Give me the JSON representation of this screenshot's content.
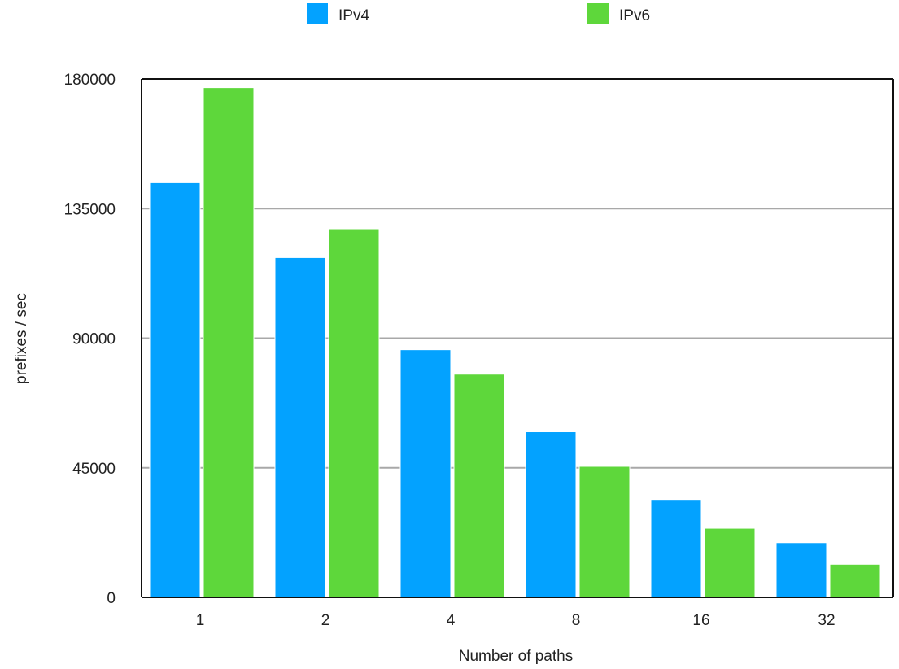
{
  "chart_data": {
    "type": "bar",
    "title": "",
    "xlabel": "Number of paths",
    "ylabel": "prefixes / sec",
    "categories": [
      "1",
      "2",
      "4",
      "8",
      "16",
      "32"
    ],
    "series": [
      {
        "name": "IPv4",
        "color": "#03a2ff",
        "values": [
          144000,
          118000,
          86000,
          57500,
          34000,
          19000
        ]
      },
      {
        "name": "IPv6",
        "color": "#5ed73b",
        "values": [
          177000,
          128000,
          77500,
          45500,
          24000,
          11500
        ]
      }
    ],
    "ylim": [
      0,
      180000
    ],
    "yticks": [
      "0",
      "45000",
      "90000",
      "135000",
      "180000"
    ],
    "grid": true,
    "legend_position": "top-center"
  }
}
